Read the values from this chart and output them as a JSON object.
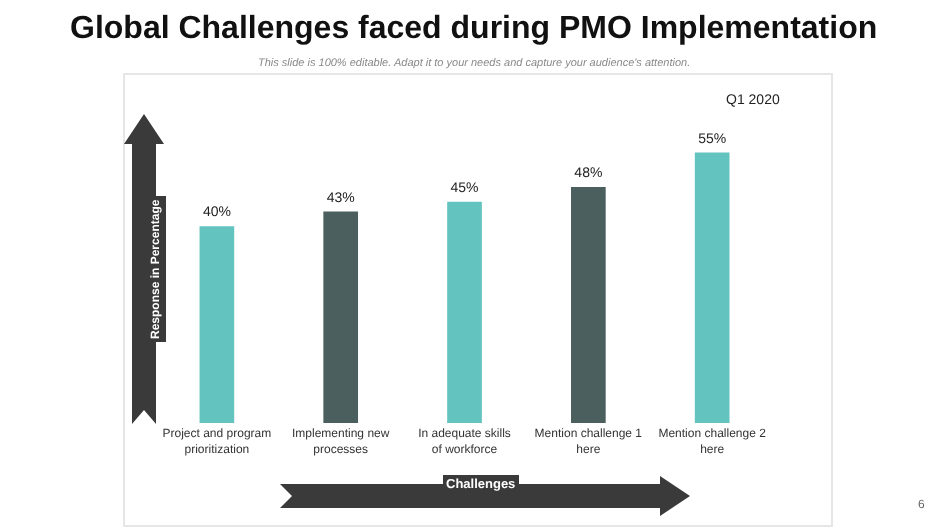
{
  "chart_data": {
    "type": "bar",
    "title": "Global Challenges faced during PMO Implementation",
    "subtitle": "This slide is 100% editable. Adapt it to your needs and capture your audience's attention.",
    "xlabel": "Challenges",
    "ylabel": "Response in Percentage",
    "categories": [
      "Project and program prioritization",
      "Implementing new processes",
      "In adequate skills of workforce",
      "Mention challenge 1 here",
      "Mention challenge 2 here"
    ],
    "series": [
      {
        "colors": [
          "#63c3bf",
          "#4a5f5e",
          "#63c3bf",
          "#4a5f5e",
          "#63c3bf"
        ],
        "values": [
          40,
          43,
          45,
          48,
          55
        ],
        "value_labels": [
          "40%",
          "43%",
          "45%",
          "48%",
          "55%"
        ]
      }
    ],
    "annotations": [
      "Q1 2020",
      "6"
    ]
  }
}
